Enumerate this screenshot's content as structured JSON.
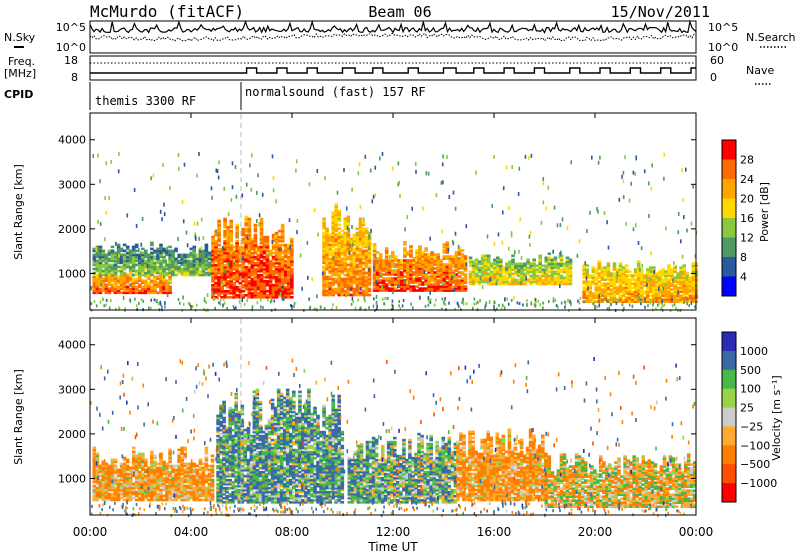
{
  "header": {
    "station": "McMurdo (fitACF)",
    "beam": "Beam 06",
    "date": "15/Nov/2011"
  },
  "top_panels": {
    "nsky_label": "N.Sky",
    "nsky_ticks": [
      "10^5",
      "10^0"
    ],
    "nsearch_label": "N.Search",
    "nsearch_ticks": [
      "10^5",
      "10^0"
    ],
    "freq_label": "Freq.",
    "freq_unit": "[MHz]",
    "freq_ticks": [
      "18",
      "8"
    ],
    "nave_label": "Nave",
    "nave_ticks": [
      "60",
      "0"
    ],
    "cpid_label": "CPID",
    "cpid_segments": [
      {
        "text": "themis 3300 RF",
        "start_hour": 0
      },
      {
        "text": "normalsound (fast) 157 RF",
        "start_hour": 6
      }
    ]
  },
  "power_legend": {
    "title": "Power [dB]",
    "ticks": [
      "28",
      "24",
      "20",
      "16",
      "12",
      "8",
      "4"
    ],
    "colors": [
      "#ff0000",
      "#ff6a00",
      "#ffa500",
      "#ffd800",
      "#88c83c",
      "#4e9a62",
      "#2a5a9e",
      "#0000ff"
    ]
  },
  "velocity_legend": {
    "title": "Velocity [m s⁻¹]",
    "ticks": [
      "1000",
      "500",
      "100",
      "25",
      "−25",
      "−100",
      "−500",
      "−1000"
    ],
    "colors": [
      "#2b2bb5",
      "#3a6aa6",
      "#48b848",
      "#9ad24a",
      "#cccccc",
      "#ffaa33",
      "#ff8000",
      "#ff5000",
      "#ff0000"
    ]
  },
  "axes": {
    "ylabel": "Slant Range [km]",
    "xlabel": "Time UT",
    "yticks": [
      "4000",
      "3000",
      "2000",
      "1000"
    ],
    "xticks": [
      "00:00",
      "04:00",
      "08:00",
      "12:00",
      "16:00",
      "20:00",
      "00:00"
    ]
  },
  "chart_data": [
    {
      "type": "heatmap",
      "title": "",
      "xlabel": "",
      "ylabel": "Slant Range [km]",
      "quantity": "Power [dB]",
      "x_range_hours": [
        0,
        24
      ],
      "y_range_km": [
        180,
        4600
      ],
      "color_range": [
        0,
        30
      ],
      "scattering_regions": [
        {
          "t0": 0.1,
          "t1": 3.2,
          "r0": 550,
          "r1": 950,
          "mean_db": 22
        },
        {
          "t0": 0.1,
          "t1": 4.8,
          "r0": 950,
          "r1": 1550,
          "mean_db": 9
        },
        {
          "t0": 4.8,
          "t1": 8.0,
          "r0": 450,
          "r1": 1900,
          "mean_db": 24
        },
        {
          "t0": 9.2,
          "t1": 11.0,
          "r0": 500,
          "r1": 2200,
          "mean_db": 20
        },
        {
          "t0": 11.2,
          "t1": 14.8,
          "r0": 600,
          "r1": 1500,
          "mean_db": 23
        },
        {
          "t0": 15.0,
          "t1": 19.0,
          "r0": 750,
          "r1": 1300,
          "mean_db": 14
        },
        {
          "t0": 19.5,
          "t1": 24.0,
          "r0": 350,
          "r1": 1100,
          "mean_db": 18
        }
      ]
    },
    {
      "type": "heatmap",
      "title": "",
      "xlabel": "Time UT",
      "ylabel": "Slant Range [km]",
      "quantity": "Velocity [m s-1]",
      "x_range_hours": [
        0,
        24
      ],
      "y_range_km": [
        180,
        4600
      ],
      "color_range": [
        -1000,
        1000
      ],
      "scattering_regions": [
        {
          "t0": 0.1,
          "t1": 4.8,
          "r0": 500,
          "r1": 1500,
          "mean_vel": -100
        },
        {
          "t0": 5.0,
          "t1": 10.0,
          "r0": 450,
          "r1": 2500,
          "mean_vel": 90
        },
        {
          "t0": 10.2,
          "t1": 14.5,
          "r0": 450,
          "r1": 1700,
          "mean_vel": 70
        },
        {
          "t0": 14.5,
          "t1": 18.0,
          "r0": 500,
          "r1": 1800,
          "mean_vel": -110
        },
        {
          "t0": 18.0,
          "t1": 24.0,
          "r0": 350,
          "r1": 1300,
          "mean_vel": -40
        }
      ]
    }
  ]
}
